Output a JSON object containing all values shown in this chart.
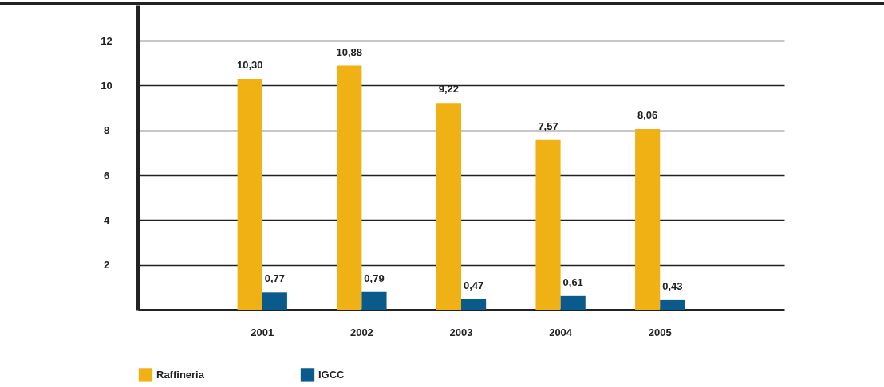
{
  "chart_data": {
    "type": "bar",
    "categories": [
      "2001",
      "2002",
      "2003",
      "2004",
      "2005"
    ],
    "series": [
      {
        "name": "Raffineria",
        "color": "#f0b114",
        "values": [
          10.3,
          10.88,
          9.22,
          7.57,
          8.06
        ],
        "value_labels": [
          "10,30",
          "10,88",
          "9,22",
          "7,57",
          "8,06"
        ]
      },
      {
        "name": "IGCC",
        "color": "#0b5a8c",
        "values": [
          0.77,
          0.79,
          0.47,
          0.61,
          0.43
        ],
        "value_labels": [
          "0,77",
          "0,79",
          "0,47",
          "0,61",
          "0,43"
        ]
      }
    ],
    "ylim": [
      0,
      13.6
    ],
    "yticks": [
      2,
      4,
      6,
      8,
      10,
      12
    ],
    "grid": "y",
    "legend": "bottom left"
  }
}
